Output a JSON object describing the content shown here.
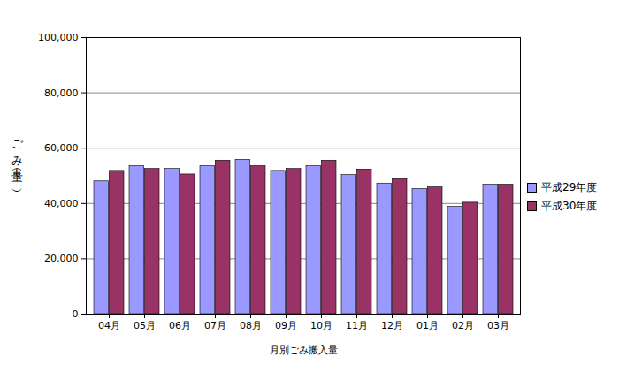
{
  "chart_data": {
    "type": "bar",
    "x_label": "月別ごみ搬入量",
    "y_label": "ごみ量（t）",
    "categories": [
      "04月",
      "05月",
      "06月",
      "07月",
      "08月",
      "09月",
      "10月",
      "11月",
      "12月",
      "01月",
      "02月",
      "03月"
    ],
    "series": [
      {
        "name": "平成29年度",
        "color": "#9999ff",
        "values": [
          48000,
          53500,
          52500,
          53500,
          55800,
          51800,
          53500,
          50300,
          47200,
          45200,
          38800,
          46800
        ]
      },
      {
        "name": "平成30年度",
        "color": "#993366",
        "values": [
          51800,
          52500,
          50500,
          55500,
          53500,
          52500,
          55500,
          52300,
          48800,
          45800,
          40300,
          46800
        ]
      }
    ],
    "ylim": [
      0,
      100000
    ],
    "yticks": [
      0,
      {
        "value": 20000,
        "label": "20,000"
      },
      {
        "value": 40000,
        "label": "40,000"
      },
      {
        "value": 60000,
        "label": "60,000"
      },
      {
        "value": 80000,
        "label": "80,000"
      },
      {
        "value": 100000,
        "label": "100,000"
      }
    ],
    "grid": true,
    "legend": "right"
  }
}
